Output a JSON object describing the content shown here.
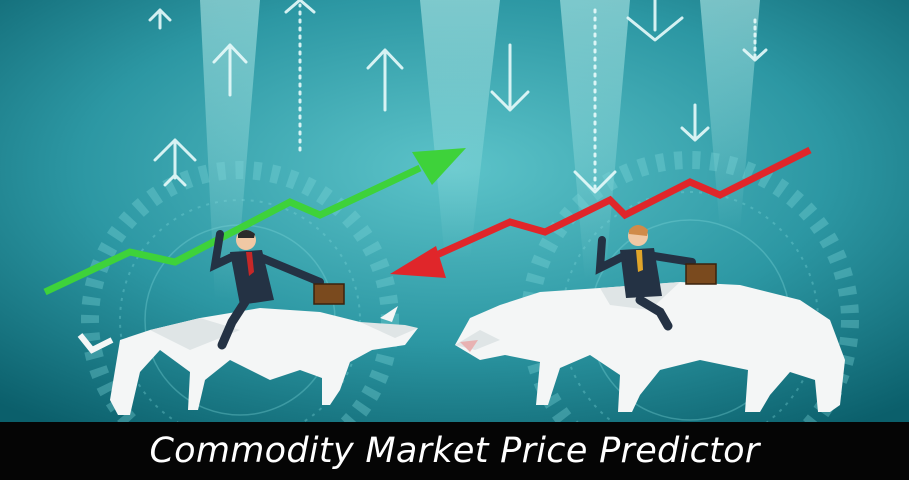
{
  "caption": {
    "text": "Commodity Market Price Predictor"
  },
  "colors": {
    "background_dark": "#0b5f6b",
    "background_light": "#5cc3c9",
    "uptrend_arrow": "#3ed23a",
    "downtrend_arrow": "#e0262a",
    "animal": "#f4f6f6",
    "suit": "#243244",
    "caption_bar": "#050505",
    "caption_text": "#ffffff"
  },
  "icons": {
    "left_figure": "bull-rider-icon",
    "right_figure": "bear-rider-icon",
    "floating_up": "up-arrow-icon",
    "floating_down": "down-arrow-icon"
  }
}
